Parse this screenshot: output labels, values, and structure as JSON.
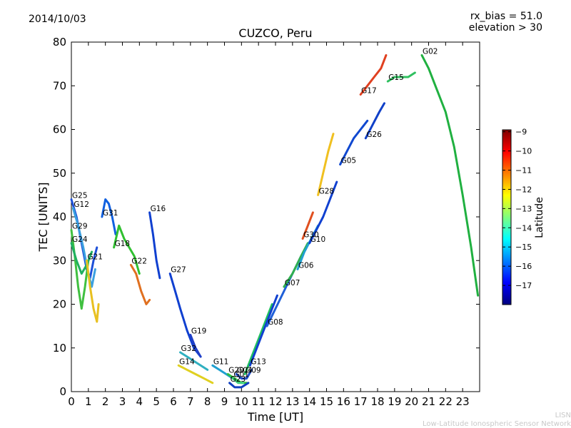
{
  "header": {
    "date": "2014/10/03",
    "rx_bias": "rx_bias = 51.0",
    "elevation": "elevation > 30"
  },
  "footer": {
    "line1": "LISN",
    "line2": "Low-Latitude Ionospheric Sensor Network"
  },
  "chart_data": {
    "type": "scatter",
    "title": "CUZCO, Peru",
    "xlabel": "Time [UT]",
    "ylabel": "TEC [UNITS]",
    "xlim": [
      0,
      24
    ],
    "ylim": [
      0,
      80
    ],
    "x_ticks": [
      "0",
      "1",
      "2",
      "3",
      "4",
      "5",
      "6",
      "7",
      "8",
      "9",
      "10",
      "11",
      "12",
      "13",
      "14",
      "15",
      "16",
      "17",
      "18",
      "19",
      "20",
      "21",
      "22",
      "23"
    ],
    "y_ticks": [
      "0",
      "10",
      "20",
      "30",
      "40",
      "50",
      "60",
      "70",
      "80"
    ],
    "colorbar": {
      "label": "Latitude",
      "min": -18,
      "max": -8.9,
      "ticks": [
        "-9",
        "-10",
        "-11",
        "-12",
        "-13",
        "-14",
        "-15",
        "-16",
        "-17"
      ],
      "colors": [
        "#00007f",
        "#0000ff",
        "#007fff",
        "#00ffff",
        "#7fff7f",
        "#ffff00",
        "#ff7f00",
        "#ff0000",
        "#7f0000"
      ]
    },
    "series": [
      {
        "name": "G25",
        "color": "#1e50d8",
        "points": [
          [
            0.0,
            44
          ],
          [
            0.3,
            40
          ],
          [
            0.6,
            34
          ],
          [
            0.9,
            28
          ],
          [
            1.1,
            26
          ],
          [
            1.3,
            30
          ],
          [
            1.5,
            33
          ]
        ]
      },
      {
        "name": "G12",
        "color": "#3aa0e0",
        "points": [
          [
            0.1,
            42
          ],
          [
            0.4,
            38
          ],
          [
            0.7,
            33
          ],
          [
            1.0,
            27
          ],
          [
            1.2,
            24
          ],
          [
            1.4,
            28
          ]
        ]
      },
      {
        "name": "G29",
        "color": "#40c040",
        "points": [
          [
            0.0,
            37
          ],
          [
            0.2,
            31
          ],
          [
            0.4,
            24
          ],
          [
            0.6,
            19
          ],
          [
            0.8,
            24
          ],
          [
            1.0,
            30
          ]
        ]
      },
      {
        "name": "G24",
        "color": "#20b060",
        "points": [
          [
            0.0,
            34
          ],
          [
            0.3,
            30
          ],
          [
            0.6,
            27
          ],
          [
            0.9,
            29
          ],
          [
            1.2,
            32
          ]
        ]
      },
      {
        "name": "G21",
        "color": "#e8c020",
        "points": [
          [
            0.9,
            30
          ],
          [
            1.1,
            24
          ],
          [
            1.3,
            19
          ],
          [
            1.5,
            16
          ],
          [
            1.6,
            20
          ]
        ]
      },
      {
        "name": "G31",
        "color": "#1060e0",
        "points": [
          [
            1.8,
            40
          ],
          [
            2.0,
            44
          ],
          [
            2.2,
            43
          ],
          [
            2.4,
            40
          ],
          [
            2.6,
            36
          ]
        ]
      },
      {
        "name": "G18",
        "color": "#30c030",
        "points": [
          [
            2.5,
            33
          ],
          [
            2.8,
            38
          ],
          [
            3.1,
            35
          ],
          [
            3.4,
            33
          ],
          [
            3.7,
            31
          ],
          [
            4.0,
            27
          ]
        ]
      },
      {
        "name": "G22",
        "color": "#e07020",
        "points": [
          [
            3.5,
            29
          ],
          [
            3.8,
            27
          ],
          [
            4.1,
            23
          ],
          [
            4.4,
            20
          ],
          [
            4.6,
            21
          ]
        ]
      },
      {
        "name": "G16",
        "color": "#1040d0",
        "points": [
          [
            4.6,
            41
          ],
          [
            4.8,
            36
          ],
          [
            5.0,
            30
          ],
          [
            5.2,
            26
          ]
        ]
      },
      {
        "name": "G27",
        "color": "#1040d0",
        "points": [
          [
            5.8,
            27
          ],
          [
            6.1,
            23
          ],
          [
            6.4,
            19
          ],
          [
            6.8,
            14
          ],
          [
            7.2,
            10
          ],
          [
            7.6,
            8
          ]
        ]
      },
      {
        "name": "G19",
        "color": "#2040c8",
        "points": [
          [
            7.0,
            13
          ],
          [
            7.3,
            10
          ],
          [
            7.6,
            8
          ]
        ]
      },
      {
        "name": "G32",
        "color": "#30b0c0",
        "points": [
          [
            6.4,
            9
          ],
          [
            6.8,
            8
          ],
          [
            7.2,
            7
          ],
          [
            7.6,
            6
          ],
          [
            8.0,
            5
          ]
        ]
      },
      {
        "name": "G14",
        "color": "#e0d020",
        "points": [
          [
            6.3,
            6
          ],
          [
            6.8,
            5
          ],
          [
            7.3,
            4
          ],
          [
            7.8,
            3
          ],
          [
            8.3,
            2
          ]
        ]
      },
      {
        "name": "G11",
        "color": "#20a0d0",
        "points": [
          [
            8.3,
            6
          ],
          [
            8.7,
            5
          ],
          [
            9.1,
            4
          ],
          [
            9.5,
            3
          ]
        ]
      },
      {
        "name": "G20",
        "color": "#30c040",
        "points": [
          [
            9.2,
            4
          ],
          [
            9.6,
            3
          ],
          [
            10.0,
            2
          ],
          [
            10.3,
            2
          ]
        ]
      },
      {
        "name": "G04",
        "color": "#2050d0",
        "points": [
          [
            9.7,
            4
          ],
          [
            10.0,
            3
          ],
          [
            10.3,
            3
          ],
          [
            10.6,
            5
          ]
        ]
      },
      {
        "name": "G01",
        "color": "#40d080",
        "points": [
          [
            9.5,
            3
          ],
          [
            9.8,
            2
          ],
          [
            10.1,
            2
          ]
        ]
      },
      {
        "name": "G23",
        "color": "#1040c0",
        "points": [
          [
            9.3,
            2
          ],
          [
            9.6,
            1
          ],
          [
            10.0,
            1
          ],
          [
            10.4,
            2
          ]
        ]
      },
      {
        "name": "G09",
        "color": "#20c060",
        "points": [
          [
            10.2,
            4
          ],
          [
            10.6,
            8
          ],
          [
            11.0,
            12
          ],
          [
            11.4,
            16
          ],
          [
            11.8,
            20
          ]
        ]
      },
      {
        "name": "G13",
        "color": "#1040d0",
        "points": [
          [
            10.5,
            6
          ],
          [
            10.9,
            10
          ],
          [
            11.3,
            14
          ],
          [
            11.7,
            18
          ],
          [
            12.1,
            22
          ]
        ]
      },
      {
        "name": "G08",
        "color": "#2060d8",
        "points": [
          [
            11.5,
            15
          ],
          [
            12.0,
            19
          ],
          [
            12.5,
            23
          ],
          [
            13.0,
            27
          ],
          [
            13.5,
            31
          ]
        ]
      },
      {
        "name": "G07",
        "color": "#30b050",
        "points": [
          [
            12.5,
            24
          ],
          [
            13.0,
            27
          ],
          [
            13.5,
            31
          ],
          [
            13.9,
            34
          ]
        ]
      },
      {
        "name": "G06",
        "color": "#20a0d0",
        "points": [
          [
            13.3,
            28
          ],
          [
            13.7,
            32
          ],
          [
            14.1,
            35
          ],
          [
            14.5,
            38
          ]
        ]
      },
      {
        "name": "G30",
        "color": "#e05020",
        "points": [
          [
            13.6,
            35
          ],
          [
            13.9,
            38
          ],
          [
            14.2,
            41
          ]
        ]
      },
      {
        "name": "G10",
        "color": "#1040d0",
        "points": [
          [
            14.0,
            34
          ],
          [
            14.4,
            37
          ],
          [
            14.8,
            40
          ],
          [
            15.2,
            44
          ],
          [
            15.6,
            48
          ]
        ]
      },
      {
        "name": "G28",
        "color": "#f0c020",
        "points": [
          [
            14.5,
            45
          ],
          [
            14.8,
            50
          ],
          [
            15.1,
            55
          ],
          [
            15.4,
            59
          ]
        ]
      },
      {
        "name": "G05",
        "color": "#1048d0",
        "points": [
          [
            15.8,
            52
          ],
          [
            16.2,
            55
          ],
          [
            16.6,
            58
          ],
          [
            17.0,
            60
          ],
          [
            17.4,
            62
          ]
        ]
      },
      {
        "name": "G26",
        "color": "#1040c8",
        "points": [
          [
            17.3,
            58
          ],
          [
            17.7,
            61
          ],
          [
            18.1,
            64
          ],
          [
            18.4,
            66
          ]
        ]
      },
      {
        "name": "G17",
        "color": "#e04020",
        "points": [
          [
            17.0,
            68
          ],
          [
            17.4,
            70
          ],
          [
            17.8,
            72
          ],
          [
            18.2,
            74
          ],
          [
            18.5,
            77
          ]
        ]
      },
      {
        "name": "G15",
        "color": "#30c060",
        "points": [
          [
            18.6,
            71
          ],
          [
            19.0,
            72
          ],
          [
            19.4,
            72
          ],
          [
            19.8,
            72
          ],
          [
            20.2,
            73
          ]
        ]
      },
      {
        "name": "G02",
        "color": "#20b040",
        "points": [
          [
            20.6,
            77
          ],
          [
            21.0,
            74
          ],
          [
            21.5,
            69
          ],
          [
            22.0,
            64
          ],
          [
            22.5,
            56
          ],
          [
            23.0,
            45
          ],
          [
            23.5,
            33
          ],
          [
            23.9,
            22
          ]
        ]
      }
    ]
  }
}
